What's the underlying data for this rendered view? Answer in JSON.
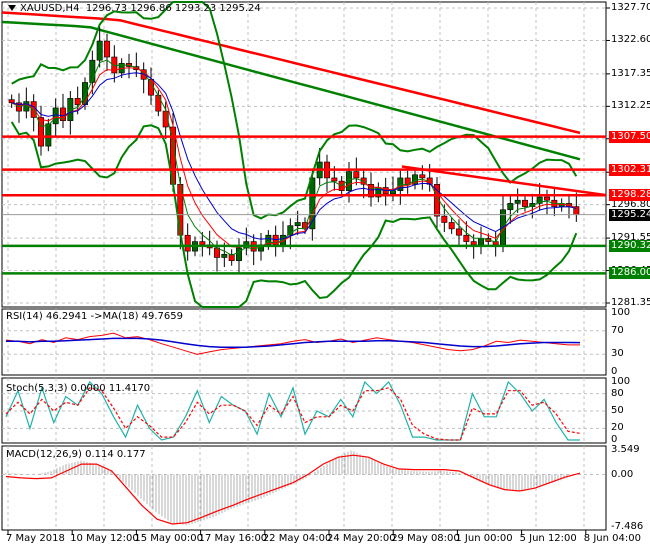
{
  "header": {
    "symbol": "XAUUSD,H4",
    "ohlc": "1296.73 1296.86 1293.23 1295.24"
  },
  "colors": {
    "bull": "#006400",
    "bear": "#ff0000",
    "support": "#008000",
    "resistance": "#ff0000",
    "grid": "#c0c0c0",
    "rsi": "#ff0000",
    "rsi_ma": "#0000cc",
    "stoch_main": "#20b2aa",
    "stoch_signal": "#ff0000",
    "macd_hist": "#b0b0b0",
    "macd_signal": "#ff0000",
    "price_tag": "#000000"
  },
  "price_axis": {
    "ticks": [
      "1327.70",
      "1322.60",
      "1317.35",
      "1312.25",
      "1307.15",
      "1301.90",
      "1296.80",
      "1291.55",
      "1286.45",
      "1281.35"
    ],
    "current_price": "1295.24"
  },
  "levels": [
    {
      "label": "1307.50",
      "kind": "resistance"
    },
    {
      "label": "1302.31",
      "kind": "resistance"
    },
    {
      "label": "1298.28",
      "kind": "resistance"
    },
    {
      "label": "1290.32",
      "kind": "support"
    },
    {
      "label": "1286.00",
      "kind": "support"
    }
  ],
  "indicators": {
    "rsi": {
      "label": "RSI(14) 46.2941  ->MA(18) 49.7659",
      "ticks": [
        "100",
        "70",
        "30",
        "0"
      ]
    },
    "stoch": {
      "label": "Stoch(5,3,3) 0.0000 11.4170",
      "ticks": [
        "100",
        "80",
        "50",
        "20",
        "0"
      ]
    },
    "macd": {
      "label": "MACD(12,26,9) 0.114 0.177",
      "ticks": [
        "3.549",
        "0.00",
        "-7.486"
      ]
    }
  },
  "time_axis": [
    "7 May 2018",
    "10 May 12:00",
    "15 May 00:00",
    "17 May 16:00",
    "22 May 04:00",
    "24 May 20:00",
    "29 May 08:00",
    "1 Jun 00:00",
    "5 Jun 12:00",
    "8 Jun 04:00"
  ],
  "chart_data": [
    {
      "type": "candlestick",
      "title": "XAUUSD,H4",
      "ohlc_last": {
        "open": 1296.73,
        "high": 1296.86,
        "low": 1293.23,
        "close": 1295.24
      },
      "ylim": [
        1281.35,
        1327.7
      ],
      "x": [
        "7 May 2018",
        "10 May 12:00",
        "15 May 00:00",
        "17 May 16:00",
        "22 May 04:00",
        "24 May 20:00",
        "29 May 08:00",
        "1 Jun 00:00",
        "5 Jun 12:00",
        "8 Jun 04:00"
      ],
      "close_path": [
        1312.8,
        1311.5,
        1313.0,
        1310.5,
        1306.0,
        1309.5,
        1312.0,
        1310.0,
        1313.5,
        1312.5,
        1316.0,
        1319.5,
        1322.5,
        1320.0,
        1317.5,
        1319.0,
        1318.5,
        1318.0,
        1316.5,
        1314.0,
        1311.5,
        1309.0,
        1300.0,
        1292.0,
        1289.5,
        1291.0,
        1290.5,
        1290.0,
        1288.5,
        1289.0,
        1288.0,
        1290.0,
        1291.0,
        1289.5,
        1290.5,
        1292.0,
        1290.5,
        1292.0,
        1293.5,
        1294.0,
        1293.0,
        1301.0,
        1303.5,
        1301.0,
        1300.5,
        1299.0,
        1302.0,
        1301.0,
        1300.0,
        1298.0,
        1299.5,
        1298.5,
        1299.0,
        1301.0,
        1300.0,
        1301.5,
        1301.0,
        1300.0,
        1295.0,
        1294.0,
        1293.0,
        1292.0,
        1291.0,
        1290.5,
        1291.5,
        1291.0,
        1290.5,
        1296.0,
        1297.0,
        1297.5,
        1296.5,
        1297.0,
        1298.0,
        1297.5,
        1296.5,
        1297.0,
        1296.5,
        1295.24
      ],
      "horizontal_levels": [
        1307.5,
        1302.31,
        1298.28,
        1290.32,
        1286.0
      ],
      "trendline": {
        "from": [
          0.72,
          1302.8
        ],
        "to": [
          1.0,
          1298.3
        ]
      },
      "ma_long_red": {
        "start": 1327.0,
        "end": 1308.0
      },
      "ma_long_green": {
        "start": 1325.5,
        "end": 1303.0
      }
    },
    {
      "type": "line",
      "title": "RSI(14) 46.2941 ->MA(18) 49.7659",
      "ylim": [
        0,
        100
      ],
      "series": [
        {
          "name": "RSI(14)",
          "values": [
            54,
            52,
            48,
            55,
            50,
            58,
            55,
            60,
            62,
            66,
            58,
            60,
            55,
            48,
            42,
            36,
            30,
            34,
            38,
            40,
            42,
            44,
            46,
            48,
            52,
            55,
            50,
            52,
            56,
            50,
            54,
            58,
            55,
            52,
            50,
            46,
            42,
            38,
            36,
            38,
            44,
            52,
            50,
            54,
            52,
            50,
            48,
            46,
            46
          ]
        },
        {
          "name": "MA(18)",
          "values": [
            52,
            52,
            51,
            52,
            52,
            53,
            54,
            55,
            56,
            57,
            57,
            57,
            56,
            54,
            51,
            48,
            45,
            43,
            42,
            42,
            42,
            43,
            44,
            46,
            48,
            50,
            51,
            52,
            52,
            52,
            52,
            53,
            53,
            52,
            51,
            50,
            48,
            46,
            44,
            43,
            43,
            44,
            46,
            48,
            49,
            50,
            50,
            50,
            49.8
          ]
        }
      ],
      "reference_lines": [
        70,
        30
      ]
    },
    {
      "type": "line",
      "title": "Stoch(5,3,3) 0.0000 11.4170",
      "ylim": [
        0,
        100
      ],
      "series": [
        {
          "name": "Main",
          "values": [
            40,
            85,
            20,
            90,
            30,
            75,
            60,
            100,
            80,
            40,
            5,
            60,
            20,
            0,
            5,
            40,
            85,
            30,
            75,
            60,
            50,
            10,
            80,
            40,
            90,
            10,
            50,
            40,
            70,
            40,
            100,
            80,
            100,
            60,
            5,
            5,
            0,
            0,
            0,
            80,
            40,
            40,
            100,
            80,
            50,
            70,
            30,
            0,
            0
          ]
        },
        {
          "name": "Signal",
          "values": [
            45,
            65,
            45,
            70,
            50,
            65,
            60,
            90,
            85,
            55,
            20,
            40,
            25,
            5,
            5,
            30,
            65,
            45,
            60,
            60,
            50,
            25,
            60,
            45,
            75,
            30,
            40,
            40,
            60,
            50,
            85,
            85,
            90,
            70,
            25,
            10,
            2,
            0,
            0,
            55,
            45,
            45,
            85,
            85,
            60,
            65,
            45,
            15,
            11.4
          ]
        }
      ],
      "reference_lines": [
        80,
        50,
        20
      ]
    },
    {
      "type": "bar+line",
      "title": "MACD(12,26,9) 0.114 0.177",
      "ylim": [
        -7.486,
        3.549
      ],
      "series": [
        {
          "name": "MACD histogram",
          "values": [
            0.2,
            0.1,
            0.0,
            0.5,
            1.5,
            2.0,
            1.5,
            0.5,
            -1.5,
            -3.5,
            -5.5,
            -7.0,
            -7.4,
            -6.8,
            -6.0,
            -5.0,
            -4.2,
            -3.5,
            -2.5,
            -1.5,
            -0.5,
            1.0,
            2.5,
            3.5,
            2.5,
            1.5,
            0.8,
            0.5,
            0.4,
            0.5,
            0.3,
            -0.5,
            -1.5,
            -2.2,
            -2.5,
            -2.0,
            -1.5,
            -0.8,
            0.114
          ]
        },
        {
          "name": "Signal",
          "values": [
            -0.3,
            -0.5,
            -0.6,
            -0.5,
            0.5,
            1.5,
            1.5,
            0.5,
            -2.0,
            -4.5,
            -6.5,
            -7.2,
            -7.0,
            -6.2,
            -5.3,
            -4.5,
            -3.6,
            -2.8,
            -2.0,
            -1.2,
            0.0,
            1.5,
            2.5,
            2.8,
            2.5,
            1.5,
            0.8,
            0.7,
            0.7,
            0.7,
            0.5,
            -0.5,
            -1.5,
            -2.2,
            -2.4,
            -2.0,
            -1.2,
            -0.4,
            0.177
          ]
        }
      ]
    }
  ]
}
